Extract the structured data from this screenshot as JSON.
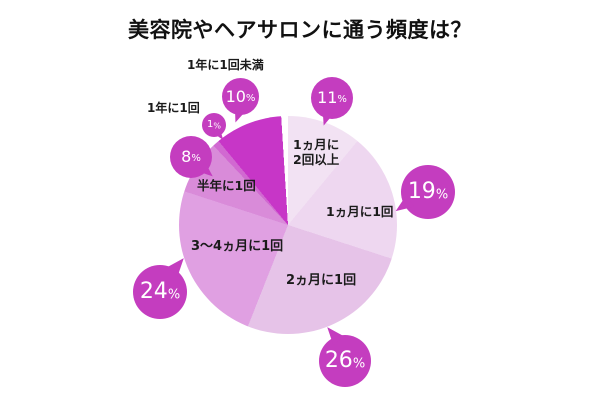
{
  "chart_data": {
    "type": "pie",
    "title": "美容院やヘアサロンに通う頻度は？",
    "unit": "%",
    "start_angle_deg": 0,
    "direction": "clockwise",
    "legend_position": "none",
    "values_total": 99,
    "remainder_color": "#ffffff",
    "callout_color": "#c43dbf",
    "callout_text_color": "#ffffff",
    "label_color": "#1b1b1b",
    "segments": [
      {
        "label": "1ヵ月に2回以上",
        "value": 11,
        "color": "#f2e2f3",
        "label_placement": "inside"
      },
      {
        "label": "1ヵ月に1回",
        "value": 19,
        "color": "#eed7f0",
        "label_placement": "inside"
      },
      {
        "label": "2ヵ月に1回",
        "value": 26,
        "color": "#e6c3e8",
        "label_placement": "inside"
      },
      {
        "label": "3〜4ヵ月に1回",
        "value": 24,
        "color": "#e0a0e2",
        "label_placement": "inside"
      },
      {
        "label": "半年に1回",
        "value": 8,
        "color": "#d98bd9",
        "label_placement": "inside"
      },
      {
        "label": "1年に1回",
        "value": 1,
        "color": "#d169d1",
        "label_placement": "outside"
      },
      {
        "label": "1年に1回未満",
        "value": 10,
        "color": "#c736c7",
        "label_placement": "outside"
      }
    ]
  }
}
